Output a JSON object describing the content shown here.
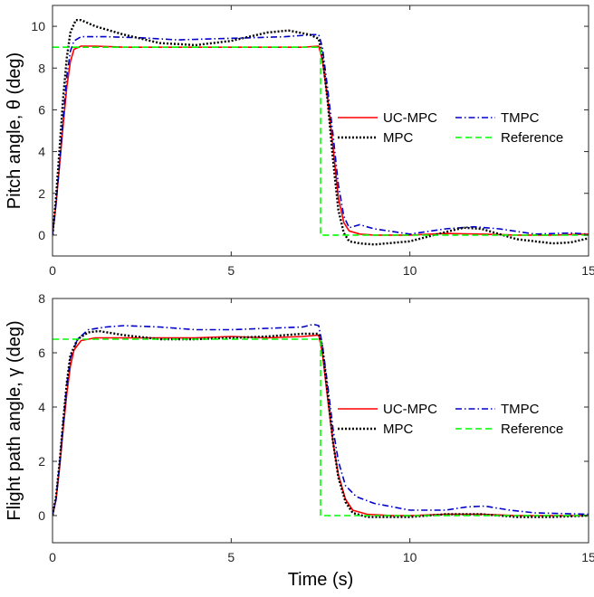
{
  "chart_data": [
    {
      "type": "line",
      "ylabel": "Pitch angle, θ (deg)",
      "xlabel": "",
      "xlim": [
        0,
        15
      ],
      "ylim": [
        -1,
        11
      ],
      "xticks": [
        "0",
        "5",
        "10",
        "15"
      ],
      "yticks": [
        "0",
        "2",
        "4",
        "6",
        "8",
        "10"
      ],
      "legend_placement": "center-right",
      "series": [
        {
          "name": "UC-MPC",
          "color": "#ff0000",
          "dash": "solid",
          "points": [
            [
              0,
              0
            ],
            [
              0.1,
              1.5
            ],
            [
              0.2,
              3.4
            ],
            [
              0.3,
              5.3
            ],
            [
              0.4,
              7.1
            ],
            [
              0.5,
              8.3
            ],
            [
              0.6,
              8.9
            ],
            [
              0.8,
              9.05
            ],
            [
              1.2,
              9.05
            ],
            [
              2,
              9.0
            ],
            [
              3,
              9.0
            ],
            [
              4,
              9.0
            ],
            [
              5,
              9.0
            ],
            [
              6,
              9.0
            ],
            [
              7,
              9.0
            ],
            [
              7.45,
              9.05
            ],
            [
              7.55,
              8.4
            ],
            [
              7.7,
              6.5
            ],
            [
              7.85,
              4.2
            ],
            [
              8.0,
              1.8
            ],
            [
              8.15,
              0.6
            ],
            [
              8.3,
              0.2
            ],
            [
              8.6,
              0.05
            ],
            [
              9,
              0.0
            ],
            [
              10,
              0.0
            ],
            [
              11,
              0.08
            ],
            [
              12,
              0.05
            ],
            [
              13,
              0.0
            ],
            [
              14,
              0.0
            ],
            [
              15,
              0.05
            ]
          ]
        },
        {
          "name": "TMPC",
          "color": "#0000cc",
          "dash": "dashdot",
          "points": [
            [
              0,
              0
            ],
            [
              0.1,
              1.5
            ],
            [
              0.2,
              3.5
            ],
            [
              0.3,
              5.6
            ],
            [
              0.4,
              7.6
            ],
            [
              0.5,
              8.8
            ],
            [
              0.6,
              9.3
            ],
            [
              0.8,
              9.5
            ],
            [
              1.5,
              9.5
            ],
            [
              2.5,
              9.45
            ],
            [
              3.5,
              9.35
            ],
            [
              4.5,
              9.4
            ],
            [
              5.5,
              9.45
            ],
            [
              6.5,
              9.5
            ],
            [
              7.3,
              9.6
            ],
            [
              7.45,
              9.6
            ],
            [
              7.55,
              9.0
            ],
            [
              7.7,
              7.0
            ],
            [
              7.85,
              4.8
            ],
            [
              8.0,
              2.4
            ],
            [
              8.15,
              0.9
            ],
            [
              8.3,
              0.35
            ],
            [
              8.6,
              0.5
            ],
            [
              9,
              0.3
            ],
            [
              10,
              0.05
            ],
            [
              11,
              0.3
            ],
            [
              11.8,
              0.4
            ],
            [
              12.5,
              0.3
            ],
            [
              13.5,
              0.05
            ],
            [
              14.5,
              0.1
            ],
            [
              15,
              0.05
            ]
          ]
        },
        {
          "name": "MPC",
          "color": "#000000",
          "dash": "dotted",
          "points": [
            [
              0,
              0
            ],
            [
              0.1,
              1.8
            ],
            [
              0.2,
              4.2
            ],
            [
              0.3,
              6.6
            ],
            [
              0.4,
              8.5
            ],
            [
              0.5,
              9.7
            ],
            [
              0.65,
              10.3
            ],
            [
              0.8,
              10.3
            ],
            [
              1.2,
              10.0
            ],
            [
              2,
              9.6
            ],
            [
              3,
              9.2
            ],
            [
              4,
              9.1
            ],
            [
              5,
              9.3
            ],
            [
              6,
              9.7
            ],
            [
              6.6,
              9.8
            ],
            [
              7.2,
              9.6
            ],
            [
              7.45,
              9.4
            ],
            [
              7.55,
              8.6
            ],
            [
              7.7,
              6.4
            ],
            [
              7.85,
              3.6
            ],
            [
              8.0,
              1.2
            ],
            [
              8.15,
              0.1
            ],
            [
              8.3,
              -0.3
            ],
            [
              8.6,
              -0.4
            ],
            [
              9,
              -0.45
            ],
            [
              10,
              -0.3
            ],
            [
              11,
              0.15
            ],
            [
              11.5,
              0.35
            ],
            [
              12,
              0.3
            ],
            [
              13,
              -0.2
            ],
            [
              14,
              -0.4
            ],
            [
              14.5,
              -0.35
            ],
            [
              15,
              -0.15
            ]
          ]
        },
        {
          "name": "Reference",
          "color": "#00ff00",
          "dash": "dashed",
          "points": [
            [
              0,
              9
            ],
            [
              7.5,
              9
            ],
            [
              7.5,
              0
            ],
            [
              15,
              0
            ]
          ]
        }
      ]
    },
    {
      "type": "line",
      "ylabel": "Flight path angle, γ (deg)",
      "xlabel": "Time (s)",
      "xlim": [
        0,
        15
      ],
      "ylim": [
        -1,
        8
      ],
      "xticks": [
        "0",
        "5",
        "10",
        "15"
      ],
      "yticks": [
        "0",
        "2",
        "4",
        "6",
        "8"
      ],
      "legend_placement": "center-right",
      "series": [
        {
          "name": "UC-MPC",
          "color": "#ff0000",
          "dash": "solid",
          "points": [
            [
              0,
              0
            ],
            [
              0.1,
              0.6
            ],
            [
              0.2,
              1.8
            ],
            [
              0.3,
              3.2
            ],
            [
              0.4,
              4.5
            ],
            [
              0.5,
              5.5
            ],
            [
              0.6,
              6.1
            ],
            [
              0.8,
              6.45
            ],
            [
              1.2,
              6.55
            ],
            [
              2,
              6.55
            ],
            [
              3,
              6.55
            ],
            [
              4,
              6.55
            ],
            [
              5,
              6.6
            ],
            [
              6,
              6.55
            ],
            [
              7,
              6.6
            ],
            [
              7.45,
              6.65
            ],
            [
              7.55,
              6.0
            ],
            [
              7.7,
              4.3
            ],
            [
              7.85,
              2.7
            ],
            [
              8.0,
              1.5
            ],
            [
              8.2,
              0.6
            ],
            [
              8.4,
              0.2
            ],
            [
              8.8,
              0.05
            ],
            [
              9.5,
              0.0
            ],
            [
              10,
              0.0
            ],
            [
              11,
              0.05
            ],
            [
              12,
              0.05
            ],
            [
              13,
              0.0
            ],
            [
              14,
              0.0
            ],
            [
              15,
              0.0
            ]
          ]
        },
        {
          "name": "TMPC",
          "color": "#0000cc",
          "dash": "dashdot",
          "points": [
            [
              0,
              0
            ],
            [
              0.1,
              0.6
            ],
            [
              0.2,
              1.9
            ],
            [
              0.3,
              3.4
            ],
            [
              0.4,
              4.8
            ],
            [
              0.5,
              5.8
            ],
            [
              0.7,
              6.5
            ],
            [
              1.0,
              6.85
            ],
            [
              1.5,
              6.95
            ],
            [
              2,
              7.0
            ],
            [
              3,
              6.95
            ],
            [
              4,
              6.85
            ],
            [
              5,
              6.85
            ],
            [
              6,
              6.9
            ],
            [
              7,
              6.95
            ],
            [
              7.3,
              7.05
            ],
            [
              7.45,
              7.0
            ],
            [
              7.55,
              6.3
            ],
            [
              7.7,
              4.8
            ],
            [
              7.85,
              3.2
            ],
            [
              8.0,
              2.0
            ],
            [
              8.2,
              1.1
            ],
            [
              8.5,
              0.7
            ],
            [
              9,
              0.45
            ],
            [
              10,
              0.2
            ],
            [
              11,
              0.2
            ],
            [
              11.6,
              0.32
            ],
            [
              12.1,
              0.35
            ],
            [
              12.8,
              0.2
            ],
            [
              13.5,
              0.1
            ],
            [
              15,
              0.05
            ]
          ]
        },
        {
          "name": "MPC",
          "color": "#000000",
          "dash": "dotted",
          "points": [
            [
              0,
              0
            ],
            [
              0.1,
              0.7
            ],
            [
              0.2,
              2.0
            ],
            [
              0.3,
              3.5
            ],
            [
              0.4,
              4.9
            ],
            [
              0.5,
              5.9
            ],
            [
              0.7,
              6.5
            ],
            [
              1.0,
              6.75
            ],
            [
              1.3,
              6.8
            ],
            [
              2,
              6.65
            ],
            [
              3,
              6.5
            ],
            [
              4,
              6.5
            ],
            [
              5,
              6.55
            ],
            [
              6,
              6.6
            ],
            [
              7,
              6.7
            ],
            [
              7.45,
              6.7
            ],
            [
              7.55,
              6.2
            ],
            [
              7.7,
              4.5
            ],
            [
              7.85,
              2.7
            ],
            [
              8.0,
              1.4
            ],
            [
              8.2,
              0.5
            ],
            [
              8.4,
              0.1
            ],
            [
              8.8,
              -0.05
            ],
            [
              9.5,
              -0.05
            ],
            [
              10,
              -0.05
            ],
            [
              11,
              0.05
            ],
            [
              12,
              0.05
            ],
            [
              13,
              -0.05
            ],
            [
              14,
              -0.05
            ],
            [
              15,
              0.0
            ]
          ]
        },
        {
          "name": "Reference",
          "color": "#00ff00",
          "dash": "dashed",
          "points": [
            [
              0,
              6.5
            ],
            [
              7.5,
              6.5
            ],
            [
              7.5,
              0
            ],
            [
              15,
              0
            ]
          ]
        }
      ]
    }
  ]
}
